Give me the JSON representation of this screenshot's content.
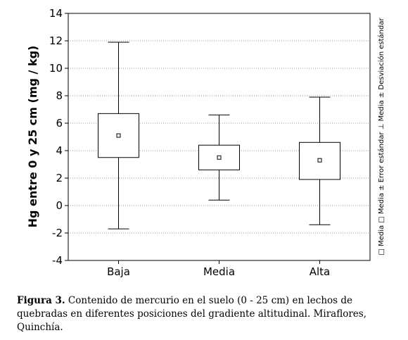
{
  "chart_data": {
    "type": "box",
    "ylabel": "Hg entre 0 y 25 cm (mg / kg)",
    "ylim": [
      -4,
      14
    ],
    "yticks": [
      -4,
      -2,
      0,
      2,
      4,
      6,
      8,
      10,
      12,
      14
    ],
    "grid": true,
    "categories": [
      "Baja",
      "Media",
      "Alta"
    ],
    "series": [
      {
        "name": "Media",
        "values": [
          5.1,
          3.5,
          3.3
        ]
      },
      {
        "name": "Media ± Error estándar",
        "low": [
          3.5,
          2.6,
          1.9
        ],
        "high": [
          6.7,
          4.4,
          4.6
        ]
      },
      {
        "name": "Media ± Desviación estándar",
        "low": [
          -1.7,
          0.4,
          -1.4
        ],
        "high": [
          11.9,
          6.6,
          7.9
        ]
      }
    ],
    "legend_placement": "right (vertical)",
    "legend_text": "□ Media  □ Media ± Error estándar  ⊥ Media ± Desviación estándar"
  },
  "caption": {
    "label": "Figura 3.",
    "text": "Contenido de mercurio en el suelo (0 - 25 cm) en lechos de quebradas en diferentes posiciones del gradiente altitudinal. Miraflores, Quinchía."
  }
}
